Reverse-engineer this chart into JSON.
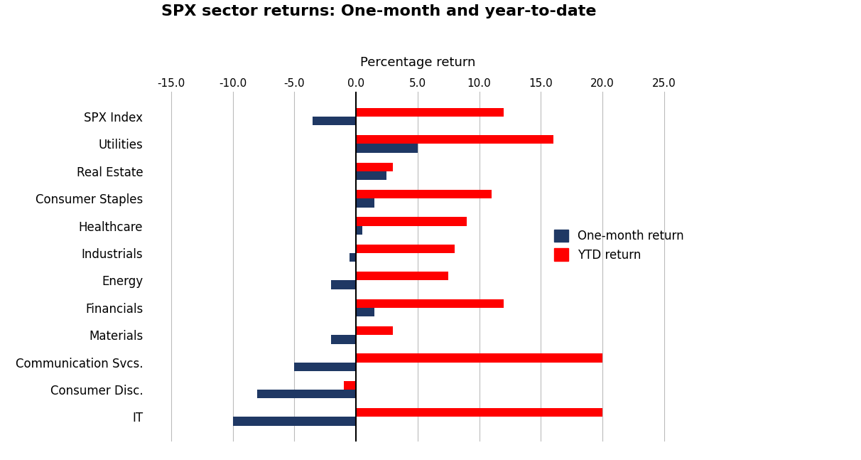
{
  "title": "SPX sector returns: One-month and year-to-date",
  "xlabel": "Percentage return",
  "categories": [
    "SPX Index",
    "Utilities",
    "Real Estate",
    "Consumer Staples",
    "Healthcare",
    "Industrials",
    "Energy",
    "Financials",
    "Materials",
    "Communication Svcs.",
    "Consumer Disc.",
    "IT"
  ],
  "one_month": [
    -3.5,
    5.0,
    2.5,
    1.5,
    0.5,
    -0.5,
    -2.0,
    1.5,
    -2.0,
    -5.0,
    -8.0,
    -10.0
  ],
  "ytd": [
    12.0,
    16.0,
    3.0,
    11.0,
    9.0,
    8.0,
    7.5,
    12.0,
    3.0,
    20.0,
    -1.0,
    20.0
  ],
  "one_month_color": "#1F3864",
  "ytd_color": "#FF0000",
  "xlim": [
    -17.0,
    27.0
  ],
  "xticks": [
    -15.0,
    -10.0,
    -5.0,
    0.0,
    5.0,
    10.0,
    15.0,
    20.0,
    25.0
  ],
  "bar_height": 0.32,
  "legend_one_month": "One-month return",
  "legend_ytd": "YTD return",
  "background_color": "#FFFFFF",
  "grid_color": "#BBBBBB",
  "title_fontsize": 16,
  "label_fontsize": 12,
  "tick_fontsize": 11
}
